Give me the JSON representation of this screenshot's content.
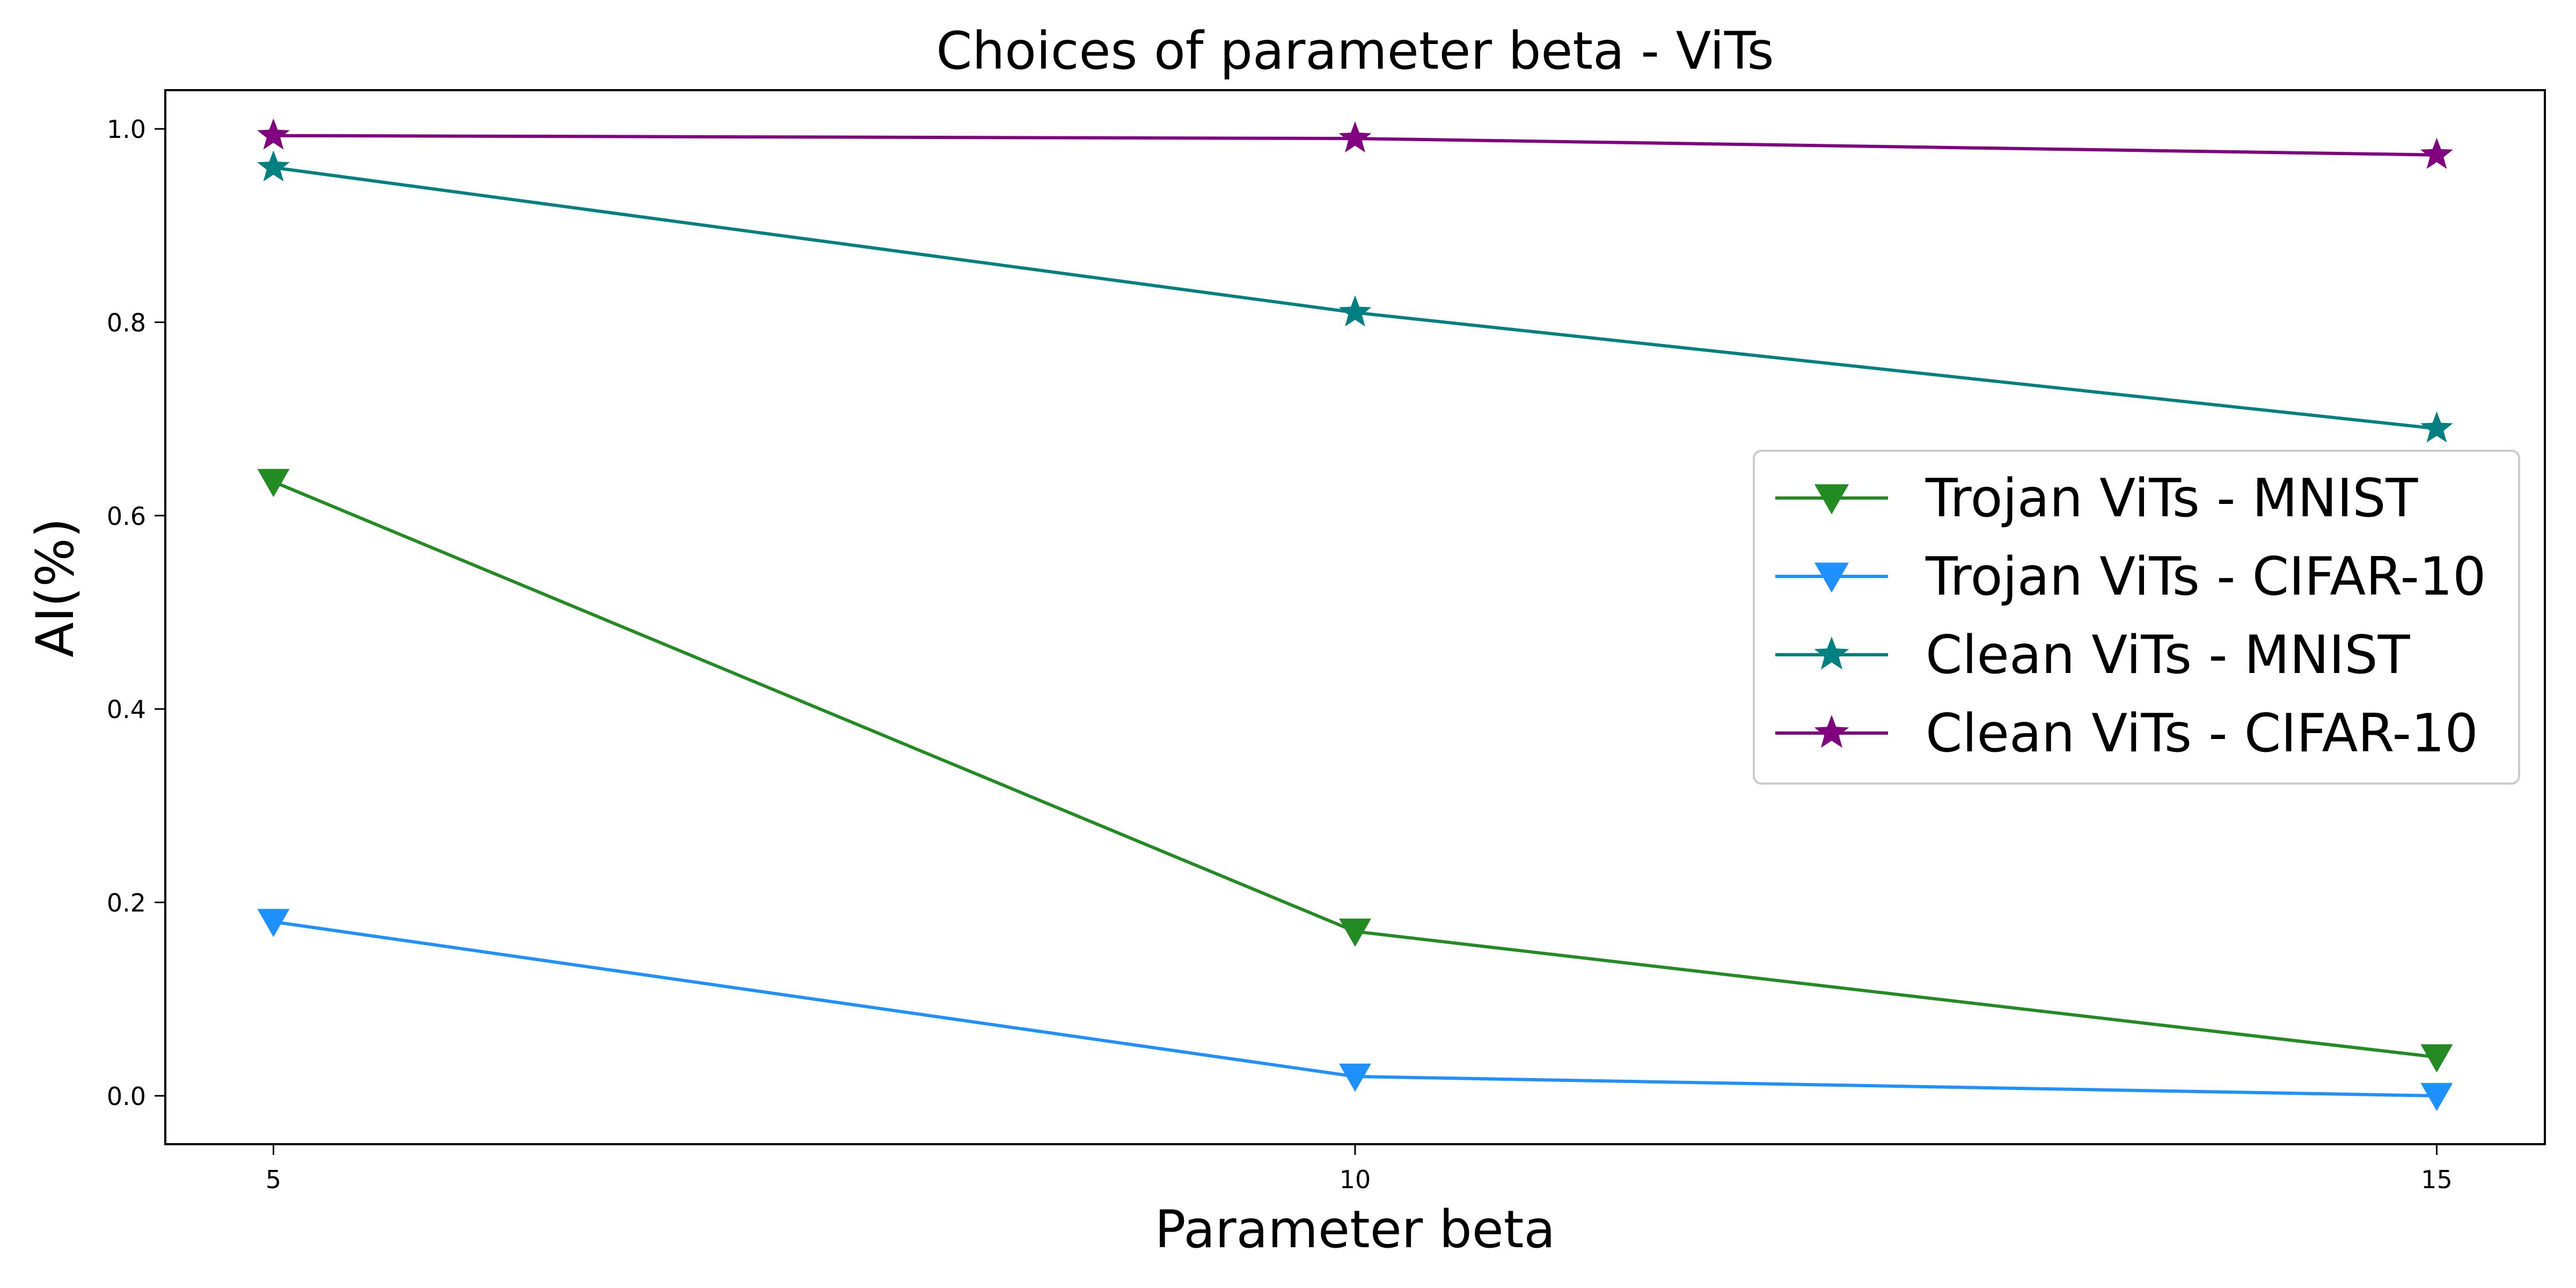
{
  "chart_data": {
    "type": "line",
    "title": "Choices of parameter beta - ViTs",
    "xlabel": "Parameter beta",
    "ylabel": "AI(%)",
    "x": [
      5,
      10,
      15
    ],
    "xticks": [
      "5",
      "10",
      "15"
    ],
    "yticks": [
      "0.0",
      "0.2",
      "0.4",
      "0.6",
      "0.8",
      "1.0"
    ],
    "xlim": [
      4.5,
      15.5
    ],
    "ylim": [
      -0.05,
      1.04
    ],
    "grid": false,
    "legend_position": "center-right",
    "series": [
      {
        "name": "Trojan ViTs - MNIST",
        "values": [
          0.635,
          0.17,
          0.04
        ],
        "color": "#228b22",
        "marker": "triangle-down"
      },
      {
        "name": "Trojan ViTs - CIFAR-10",
        "values": [
          0.18,
          0.02,
          0.0
        ],
        "color": "#1e90ff",
        "marker": "triangle-down"
      },
      {
        "name": "Clean ViTs - MNIST",
        "values": [
          0.96,
          0.81,
          0.69
        ],
        "color": "#008080",
        "marker": "star"
      },
      {
        "name": "Clean ViTs - CIFAR-10",
        "values": [
          0.993,
          0.99,
          0.973
        ],
        "color": "#800080",
        "marker": "star"
      }
    ]
  }
}
